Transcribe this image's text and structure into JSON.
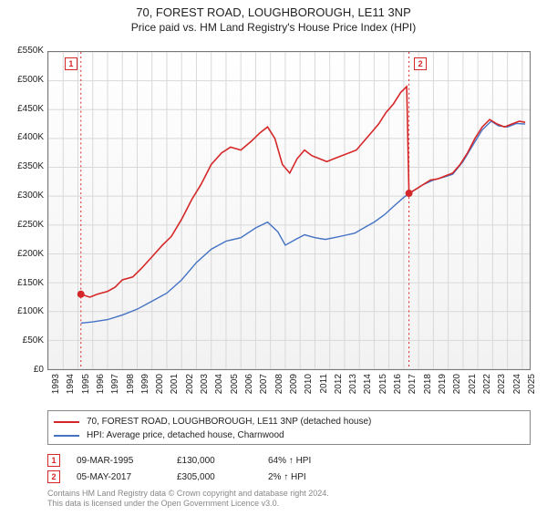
{
  "title": "70, FOREST ROAD, LOUGHBOROUGH, LE11 3NP",
  "subtitle": "Price paid vs. HM Land Registry's House Price Index (HPI)",
  "chart": {
    "type": "line",
    "background_top": "#ffffff",
    "background_bottom": "#f2f2f2",
    "border_color": "#777777",
    "grid_color": "#d8d8d8",
    "ylim": [
      0,
      550000
    ],
    "ytick_step": 50000,
    "ytick_labels": [
      "£0",
      "£50K",
      "£100K",
      "£150K",
      "£200K",
      "£250K",
      "£300K",
      "£350K",
      "£400K",
      "£450K",
      "£500K",
      "£550K"
    ],
    "x_years": [
      1993,
      1994,
      1995,
      1996,
      1997,
      1998,
      1999,
      2000,
      2001,
      2002,
      2003,
      2004,
      2005,
      2006,
      2007,
      2008,
      2009,
      2010,
      2011,
      2012,
      2013,
      2014,
      2015,
      2016,
      2017,
      2018,
      2019,
      2020,
      2021,
      2022,
      2023,
      2024,
      2025
    ],
    "xlim": [
      1993,
      2025.5
    ],
    "series_red": {
      "color": "#d62728",
      "width": 1.6,
      "label": "70, FOREST ROAD, LOUGHBOROUGH, LE11 3NP (detached house)",
      "points": [
        [
          1995.2,
          130000
        ],
        [
          1995.8,
          125000
        ],
        [
          1996.3,
          130000
        ],
        [
          1997,
          135000
        ],
        [
          1997.5,
          142000
        ],
        [
          1998,
          155000
        ],
        [
          1998.7,
          160000
        ],
        [
          1999.3,
          175000
        ],
        [
          2000,
          195000
        ],
        [
          2000.7,
          215000
        ],
        [
          2001.3,
          230000
        ],
        [
          2002,
          260000
        ],
        [
          2002.7,
          295000
        ],
        [
          2003.3,
          320000
        ],
        [
          2004,
          355000
        ],
        [
          2004.7,
          375000
        ],
        [
          2005.3,
          385000
        ],
        [
          2006,
          380000
        ],
        [
          2006.7,
          395000
        ],
        [
          2007.3,
          410000
        ],
        [
          2007.8,
          420000
        ],
        [
          2008.3,
          400000
        ],
        [
          2008.8,
          355000
        ],
        [
          2009.3,
          340000
        ],
        [
          2009.8,
          365000
        ],
        [
          2010.3,
          380000
        ],
        [
          2010.8,
          370000
        ],
        [
          2011.3,
          365000
        ],
        [
          2011.8,
          360000
        ],
        [
          2012.3,
          365000
        ],
        [
          2012.8,
          370000
        ],
        [
          2013.3,
          375000
        ],
        [
          2013.8,
          380000
        ],
        [
          2014.3,
          395000
        ],
        [
          2014.8,
          410000
        ],
        [
          2015.3,
          425000
        ],
        [
          2015.8,
          445000
        ],
        [
          2016.3,
          460000
        ],
        [
          2016.8,
          480000
        ],
        [
          2017.2,
          490000
        ],
        [
          2017.35,
          305000
        ],
        [
          2017.8,
          312000
        ],
        [
          2018.3,
          320000
        ],
        [
          2018.8,
          328000
        ],
        [
          2019.3,
          330000
        ],
        [
          2019.8,
          335000
        ],
        [
          2020.3,
          340000
        ],
        [
          2020.8,
          355000
        ],
        [
          2021.3,
          375000
        ],
        [
          2021.8,
          400000
        ],
        [
          2022.3,
          420000
        ],
        [
          2022.8,
          433000
        ],
        [
          2023.3,
          425000
        ],
        [
          2023.8,
          420000
        ],
        [
          2024.3,
          425000
        ],
        [
          2024.8,
          430000
        ],
        [
          2025.2,
          428000
        ]
      ],
      "sale_markers": [
        {
          "x": 1995.2,
          "y": 130000
        },
        {
          "x": 2017.35,
          "y": 305000
        }
      ]
    },
    "series_blue": {
      "color": "#4472c4",
      "width": 1.4,
      "label": "HPI: Average price, detached house, Charnwood",
      "points": [
        [
          1995.2,
          80000
        ],
        [
          1996,
          82000
        ],
        [
          1997,
          86000
        ],
        [
          1998,
          94000
        ],
        [
          1999,
          104000
        ],
        [
          2000,
          118000
        ],
        [
          2001,
          132000
        ],
        [
          2002,
          155000
        ],
        [
          2003,
          185000
        ],
        [
          2004,
          208000
        ],
        [
          2005,
          222000
        ],
        [
          2006,
          228000
        ],
        [
          2007,
          245000
        ],
        [
          2007.8,
          255000
        ],
        [
          2008.5,
          238000
        ],
        [
          2009,
          215000
        ],
        [
          2009.7,
          225000
        ],
        [
          2010.3,
          233000
        ],
        [
          2011,
          228000
        ],
        [
          2011.7,
          225000
        ],
        [
          2012.3,
          228000
        ],
        [
          2013,
          232000
        ],
        [
          2013.7,
          236000
        ],
        [
          2014.3,
          245000
        ],
        [
          2015,
          255000
        ],
        [
          2015.7,
          268000
        ],
        [
          2016.3,
          282000
        ],
        [
          2017,
          298000
        ],
        [
          2017.7,
          310000
        ],
        [
          2018.3,
          320000
        ],
        [
          2019,
          328000
        ],
        [
          2019.7,
          333000
        ],
        [
          2020.3,
          338000
        ],
        [
          2021,
          360000
        ],
        [
          2021.7,
          390000
        ],
        [
          2022.3,
          415000
        ],
        [
          2022.9,
          430000
        ],
        [
          2023.4,
          422000
        ],
        [
          2024,
          420000
        ],
        [
          2024.6,
          426000
        ],
        [
          2025.2,
          425000
        ]
      ]
    },
    "event_lines": [
      {
        "x": 1995.2,
        "color": "#d62728",
        "label_num": "1"
      },
      {
        "x": 2017.35,
        "color": "#d62728",
        "label_num": "2"
      }
    ]
  },
  "legend": {
    "border_color": "#888888",
    "items": [
      {
        "color": "#d62728",
        "label": "70, FOREST ROAD, LOUGHBOROUGH, LE11 3NP (detached house)"
      },
      {
        "color": "#4472c4",
        "label": "HPI: Average price, detached house, Charnwood"
      }
    ]
  },
  "markers_table": [
    {
      "num": "1",
      "color": "#d62728",
      "date": "09-MAR-1995",
      "price": "£130,000",
      "pct": "64% ↑ HPI"
    },
    {
      "num": "2",
      "color": "#d62728",
      "date": "05-MAY-2017",
      "price": "£305,000",
      "pct": "2% ↑ HPI"
    }
  ],
  "footnote_l1": "Contains HM Land Registry data © Crown copyright and database right 2024.",
  "footnote_l2": "This data is licensed under the Open Government Licence v3.0.",
  "marker_label_1": "1",
  "marker_label_2": "2"
}
